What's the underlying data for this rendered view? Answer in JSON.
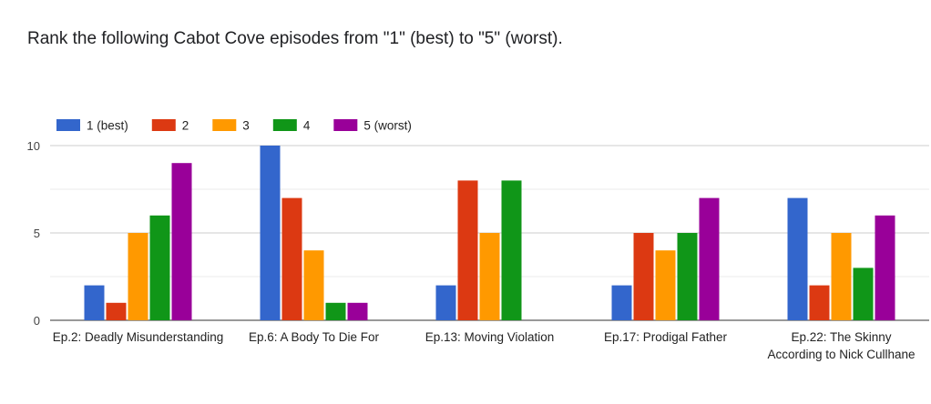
{
  "question": "Rank the following Cabot Cove episodes from \"1\" (best) to \"5\" (worst).",
  "chart_data": {
    "type": "bar",
    "categories": [
      [
        "Ep.2: Deadly Misunderstanding"
      ],
      [
        "Ep.6: A Body To Die For"
      ],
      [
        "Ep.13: Moving Violation"
      ],
      [
        "Ep.17: Prodigal Father"
      ],
      [
        "Ep.22: The Skinny",
        "According to Nick Cullhane"
      ]
    ],
    "series": [
      {
        "name": "1 (best)",
        "color": "#3366cc",
        "values": [
          2,
          10,
          2,
          2,
          7
        ]
      },
      {
        "name": "2",
        "color": "#dc3912",
        "values": [
          1,
          7,
          8,
          5,
          2
        ]
      },
      {
        "name": "3",
        "color": "#ff9900",
        "values": [
          5,
          4,
          5,
          4,
          5
        ]
      },
      {
        "name": "4",
        "color": "#109618",
        "values": [
          6,
          1,
          8,
          5,
          3
        ]
      },
      {
        "name": "5 (worst)",
        "color": "#990099",
        "values": [
          9,
          1,
          0,
          7,
          6
        ]
      }
    ],
    "yticks": [
      0,
      5,
      10
    ],
    "ylim": [
      0,
      10
    ],
    "grid": true,
    "legend_position": "top-left"
  }
}
